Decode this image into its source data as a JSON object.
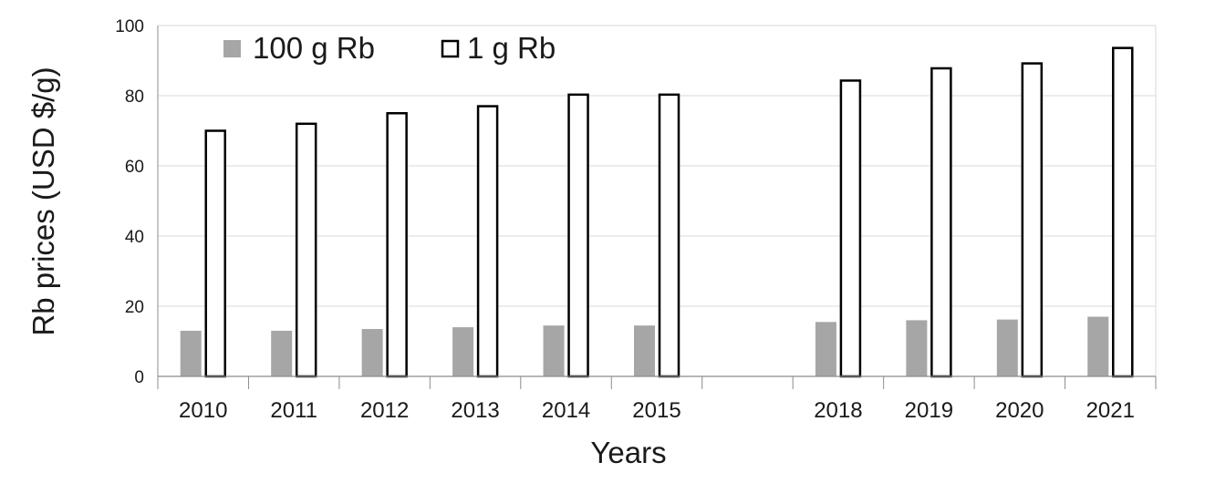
{
  "chart_data": {
    "type": "bar",
    "title": "",
    "xlabel": "Years",
    "ylabel": "Rb prices (USD $/g)",
    "categories": [
      "2010",
      "2011",
      "2012",
      "2013",
      "2014",
      "2015",
      "",
      "2018",
      "2019",
      "2020",
      "2021"
    ],
    "series": [
      {
        "name": "100 g Rb",
        "values": [
          13,
          13,
          13.5,
          14,
          14.5,
          14.5,
          null,
          15.5,
          16,
          16.2,
          17
        ],
        "fill": "#a6a6a6",
        "stroke": "none"
      },
      {
        "name": "1 g Rb",
        "values": [
          70,
          72,
          75,
          77,
          80.3,
          80.3,
          null,
          84.3,
          87.8,
          89.2,
          93.6
        ],
        "fill": "#ffffff",
        "stroke": "#000000"
      }
    ],
    "ylim": [
      0,
      100
    ],
    "yticks": [
      0,
      20,
      40,
      60,
      80,
      100
    ],
    "grid": true,
    "legend": "top-left",
    "colors": {
      "grid": "#d9d9d9",
      "axis": "#8c8c8c",
      "text": "#1a1a1a"
    }
  }
}
